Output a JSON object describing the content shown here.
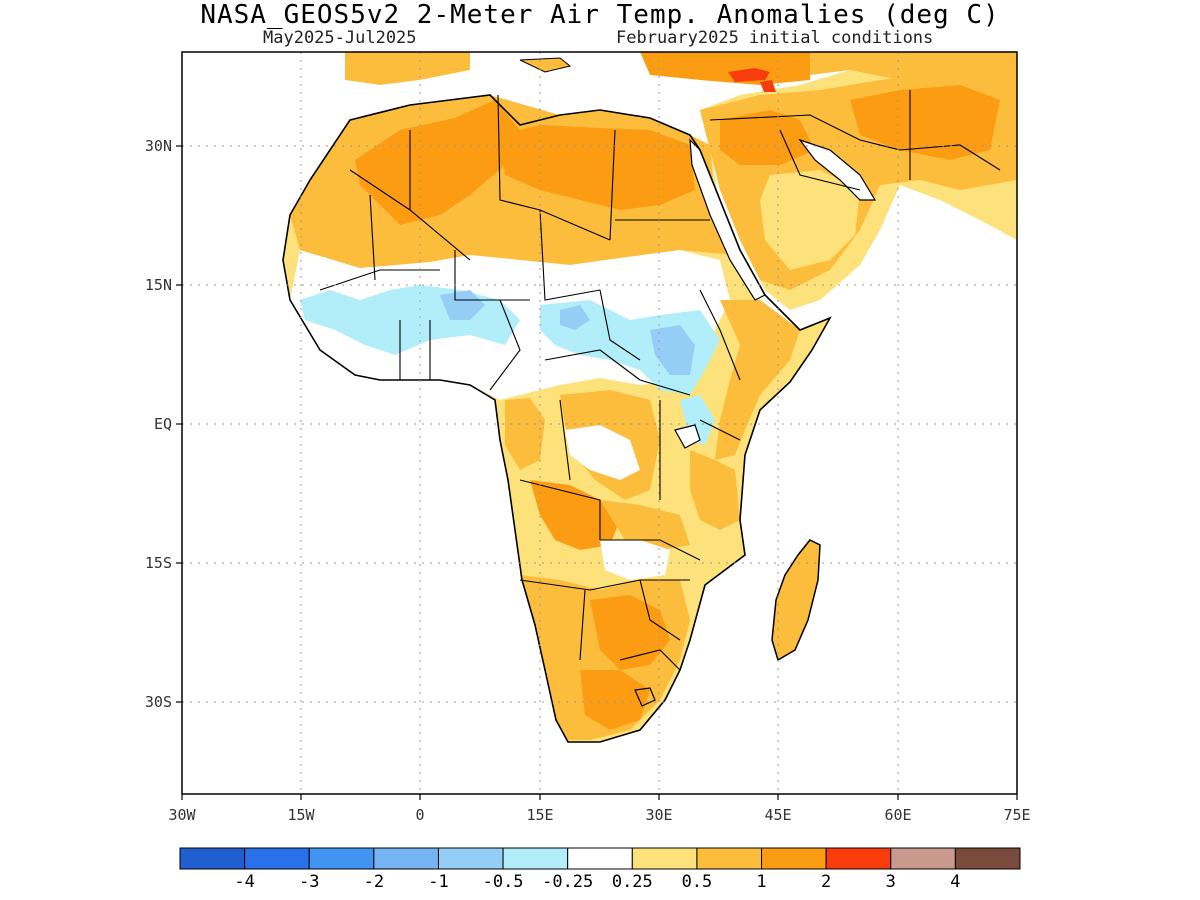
{
  "header": {
    "title": "NASA_GEOS5v2 2-Meter Air Temp. Anomalies (deg C)",
    "period": "May2025-Jul2025",
    "init": "February2025 initial conditions"
  },
  "axes": {
    "lon_labels": [
      "30W",
      "15W",
      "0",
      "15E",
      "30E",
      "45E",
      "60E",
      "75E"
    ],
    "lat_labels": [
      "30N",
      "15N",
      "EQ",
      "15S",
      "30S"
    ],
    "lon_range": [
      -30,
      75
    ],
    "lat_range": [
      -40,
      40
    ],
    "grid": "dotted"
  },
  "colorbar": {
    "labels": [
      "-4",
      "-3",
      "-2",
      "-1",
      "-0.5",
      "-0.25",
      "0.25",
      "0.5",
      "1",
      "2",
      "3",
      "4"
    ],
    "colors": [
      "#1f5fd0",
      "#2a70ea",
      "#4194f2",
      "#74b4f3",
      "#94cdf6",
      "#b2eef9",
      "#ffffff",
      "#fde17a",
      "#fcbc3c",
      "#fb9c12",
      "#f83c0c",
      "#c9998e",
      "#7a4a3c"
    ]
  },
  "map": {
    "region": "Africa and Middle East",
    "land_color": "#ffffff",
    "ocean_color": "#ffffff",
    "anomaly_colors": {
      "warm_light": "#fde17a",
      "warm_mid": "#fcbc3c",
      "warm_strong": "#fb9c12",
      "hot": "#f83c0c",
      "cool_light": "#b2eef9",
      "cool_mid": "#94cdf6"
    }
  }
}
